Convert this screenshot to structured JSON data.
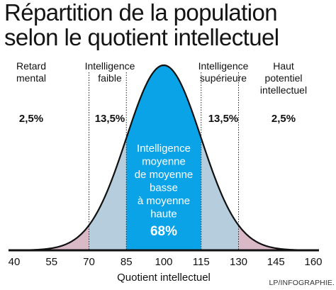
{
  "title": {
    "line1": "Répartition de la population",
    "line2": "selon le quotient intellectuel"
  },
  "chart_data": {
    "type": "area",
    "distribution": "normal",
    "mean": 100,
    "sd": 15,
    "xlabel": "Quotient intellectuel",
    "x_ticks": [
      "40",
      "55",
      "70",
      "85",
      "100",
      "115",
      "130",
      "145",
      "160"
    ],
    "xlim": [
      40,
      160
    ],
    "regions": [
      {
        "name": "Retard mental",
        "lines": [
          "Retard",
          "mental"
        ],
        "from": 40,
        "to": 70,
        "percent": "2,5%",
        "color": "#d9b9c6"
      },
      {
        "name": "Intelligence faible",
        "lines": [
          "Intelligence",
          "faible"
        ],
        "from": 70,
        "to": 85,
        "percent": "13,5%",
        "color": "#b5cddc"
      },
      {
        "name": "Intelligence moyenne de moyenne basse à moyenne haute",
        "lines": [
          "Intelligence",
          "moyenne",
          "de moyenne",
          "basse",
          "à moyenne",
          "haute"
        ],
        "from": 85,
        "to": 115,
        "percent": "68%",
        "color": "#0aa3e8"
      },
      {
        "name": "Intelligence supérieure",
        "lines": [
          "Intelligence",
          "supérieure"
        ],
        "from": 115,
        "to": 130,
        "percent": "13,5%",
        "color": "#b5cddc"
      },
      {
        "name": "Haut potentiel intellectuel",
        "lines": [
          "Haut",
          "potentiel",
          "intellectuel"
        ],
        "from": 130,
        "to": 160,
        "percent": "2,5%",
        "color": "#d9b9c6"
      }
    ],
    "boundaries": [
      70,
      85,
      115,
      130
    ],
    "outline_color": "#111111"
  },
  "credit": "LP/INFOGRAPHIE."
}
